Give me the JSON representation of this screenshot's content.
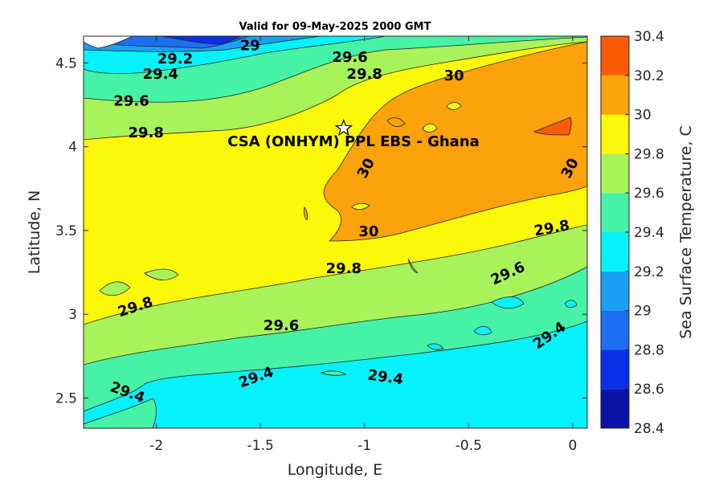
{
  "chart_data": {
    "type": "filled-contour",
    "title": "Valid for 09-May-2025 2000 GMT",
    "xlabel": "Longitude, E",
    "ylabel": "Latitude, N",
    "xlim": [
      -2.35,
      0.07
    ],
    "ylim": [
      2.32,
      4.66
    ],
    "x_ticks": [
      -2,
      -1.5,
      -1,
      -0.5,
      0
    ],
    "x_tick_labels": [
      "-2",
      "-1.5",
      "-1",
      "-0.5",
      "0"
    ],
    "y_ticks": [
      2.5,
      3,
      3.5,
      4,
      4.5
    ],
    "y_tick_labels": [
      "2.5",
      "3",
      "3.5",
      "4",
      "4.5"
    ],
    "colorbar": {
      "label": "Sea Surface Temperature, C",
      "levels": [
        28.4,
        28.6,
        28.8,
        29,
        29.2,
        29.4,
        29.6,
        29.8,
        30,
        30.2,
        30.4
      ],
      "tick_labels": [
        "28.4",
        "28.6",
        "28.8",
        "29",
        "29.2",
        "29.4",
        "29.6",
        "29.8",
        "30",
        "30.2",
        "30.4"
      ],
      "colors": [
        "#0a12a6",
        "#0b2ee8",
        "#1d6ef0",
        "#1aa0f2",
        "#05f2fa",
        "#46f2a6",
        "#a8f25a",
        "#fcf80a",
        "#fca20a",
        "#fc5a06"
      ]
    },
    "contour_labels": [
      {
        "text": "29",
        "lon": -1.55,
        "lat": 4.6
      },
      {
        "text": "29.2",
        "lon": -1.91,
        "lat": 4.52
      },
      {
        "text": "29.4",
        "lon": -1.98,
        "lat": 4.43
      },
      {
        "text": "29.6",
        "lon": -2.12,
        "lat": 4.27
      },
      {
        "text": "29.8",
        "lon": -2.05,
        "lat": 4.08
      },
      {
        "text": "29.6",
        "lon": -1.07,
        "lat": 4.53
      },
      {
        "text": "29.8",
        "lon": -1.0,
        "lat": 4.43
      },
      {
        "text": "30",
        "lon": -0.57,
        "lat": 4.42
      },
      {
        "text": "30",
        "lon": -0.99,
        "lat": 3.87,
        "rotate": -62
      },
      {
        "text": "30",
        "lon": -0.01,
        "lat": 3.87,
        "rotate": -62
      },
      {
        "text": "30",
        "lon": -0.98,
        "lat": 3.49
      },
      {
        "text": "29.8",
        "lon": -0.1,
        "lat": 3.51,
        "rotate": -10
      },
      {
        "text": "29.8",
        "lon": -1.1,
        "lat": 3.27
      },
      {
        "text": "29.6",
        "lon": -0.31,
        "lat": 3.24,
        "rotate": -25
      },
      {
        "text": "29.8",
        "lon": -2.1,
        "lat": 3.04,
        "rotate": -18
      },
      {
        "text": "29.6",
        "lon": -1.4,
        "lat": 2.93
      },
      {
        "text": "29.4",
        "lon": -0.11,
        "lat": 2.87,
        "rotate": -35
      },
      {
        "text": "29.4",
        "lon": -1.52,
        "lat": 2.62,
        "rotate": -20
      },
      {
        "text": "29.4",
        "lon": -0.9,
        "lat": 2.62,
        "rotate": 8
      },
      {
        "text": "29.4",
        "lon": -2.14,
        "lat": 2.53,
        "rotate": 20
      }
    ],
    "site": {
      "name": "CSA (ONHYM) PPL EBS  - Ghana",
      "lon": -1.1,
      "lat": 4.11,
      "marker": "star-icon"
    }
  }
}
